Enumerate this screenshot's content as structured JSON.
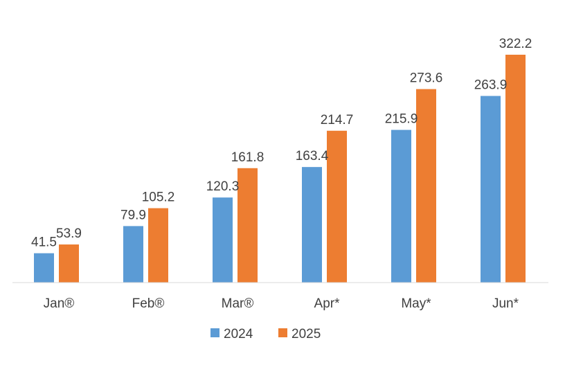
{
  "chart_data": {
    "type": "bar",
    "title": "",
    "xlabel": "",
    "ylabel": "",
    "categories": [
      "Jan®",
      "Feb®",
      "Mar®",
      "Apr*",
      "May*",
      "Jun*"
    ],
    "series": [
      {
        "name": "2024",
        "values": [
          41.5,
          79.9,
          120.3,
          163.4,
          215.9,
          263.9
        ],
        "color": "#5B9BD5"
      },
      {
        "name": "2025",
        "values": [
          53.9,
          105.2,
          161.8,
          214.7,
          273.6,
          322.2
        ],
        "color": "#ED7D31"
      }
    ],
    "ylim": [
      0,
      322.2
    ],
    "grid": false,
    "legend_position": "bottom",
    "data_labels": true
  }
}
